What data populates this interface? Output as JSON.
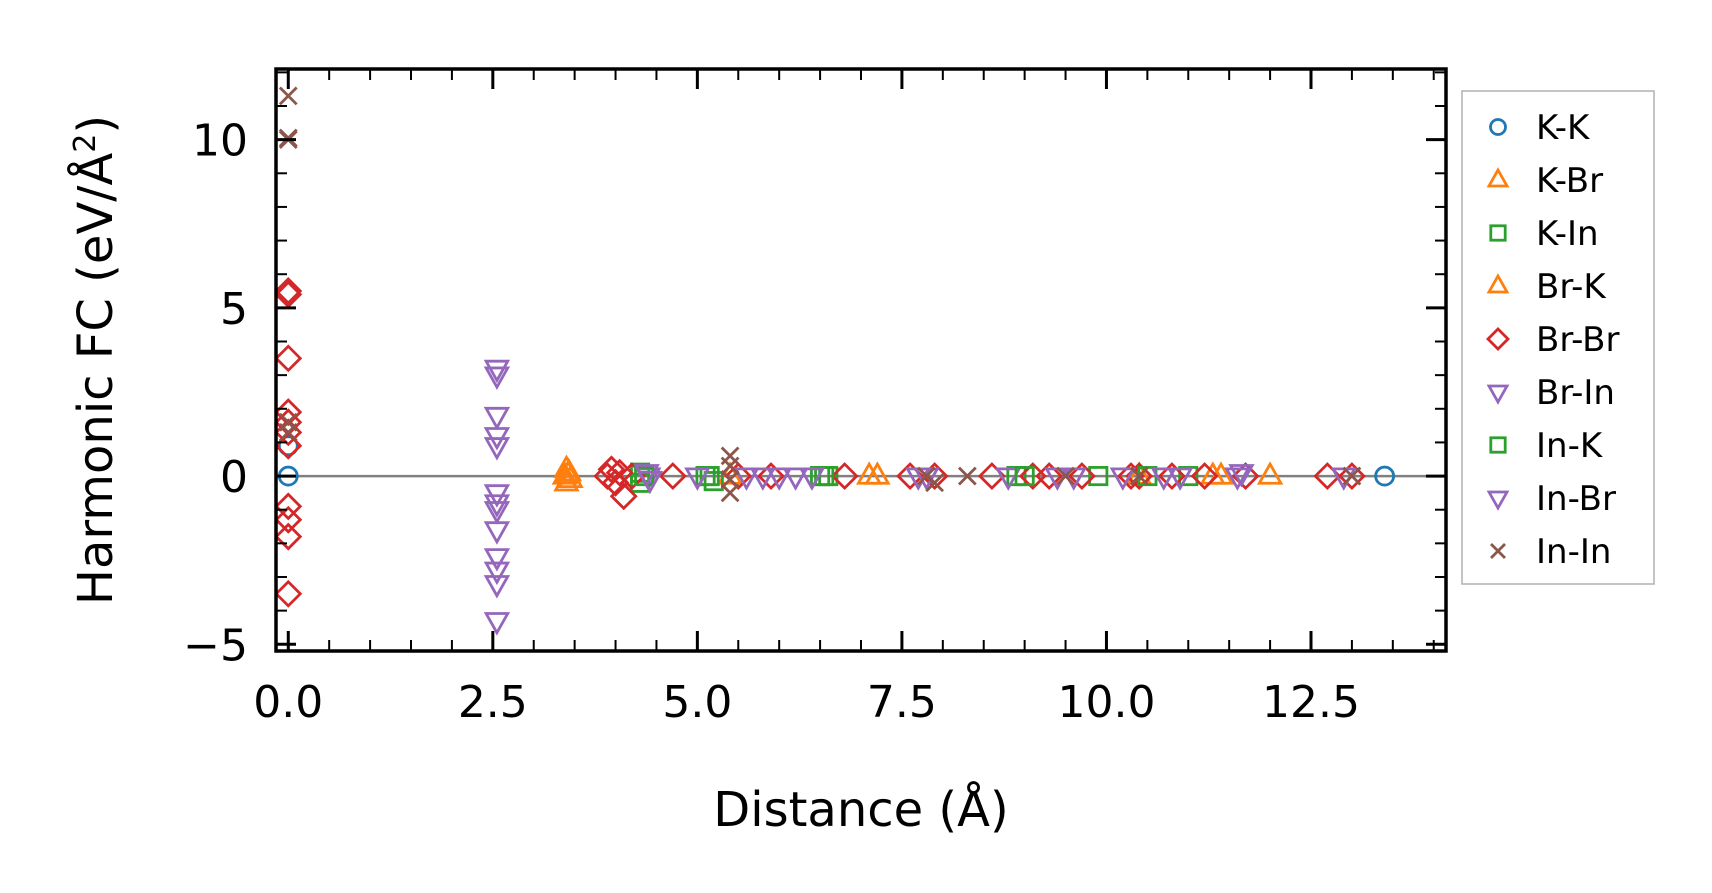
{
  "chart_data": {
    "type": "scatter",
    "xlabel": "Distance (Å)",
    "ylabel": "Harmonic FC (eV/Å²)",
    "ylabel_main": "Harmonic FC (eV/Å",
    "ylabel_sup": "2",
    "ylabel_end": ")",
    "xlim": [
      -0.15,
      14.15
    ],
    "ylim": [
      -5.2,
      12.1
    ],
    "xticks": [
      0.0,
      2.5,
      5.0,
      7.5,
      10.0,
      12.5
    ],
    "xtick_labels": [
      "0.0",
      "2.5",
      "5.0",
      "7.5",
      "10.0",
      "12.5"
    ],
    "yticks": [
      -5,
      0,
      5,
      10
    ],
    "ytick_labels": [
      "−5",
      "0",
      "5",
      "10"
    ],
    "zero_line": true,
    "grid": false,
    "legend_position": "outside right",
    "series": [
      {
        "name": "K-K",
        "marker": "circle",
        "color": "#1f77b4",
        "points": [
          [
            0,
            0
          ],
          [
            0,
            0.9
          ],
          [
            13.4,
            0
          ]
        ]
      },
      {
        "name": "K-Br",
        "marker": "triangle-up",
        "color": "#ff7f0e",
        "points": [
          [
            3.4,
            0.2
          ],
          [
            3.4,
            -0.2
          ],
          [
            3.42,
            0.05
          ],
          [
            3.45,
            -0.1
          ],
          [
            5.4,
            0
          ],
          [
            7.2,
            0
          ],
          [
            10.4,
            0
          ],
          [
            11.3,
            0
          ],
          [
            12.0,
            0
          ]
        ]
      },
      {
        "name": "K-In",
        "marker": "square",
        "color": "#2ca02c",
        "points": [
          [
            4.3,
            0.1
          ],
          [
            4.3,
            -0.2
          ],
          [
            5.1,
            0
          ],
          [
            5.2,
            -0.15
          ],
          [
            6.5,
            0
          ],
          [
            6.6,
            0
          ],
          [
            8.9,
            0
          ],
          [
            9.9,
            0
          ],
          [
            11.0,
            0
          ]
        ]
      },
      {
        "name": "Br-K",
        "marker": "triangle-up",
        "color": "#ff7f0e",
        "points": [
          [
            3.38,
            0
          ],
          [
            3.43,
            0.1
          ],
          [
            7.1,
            0
          ],
          [
            11.4,
            0
          ]
        ]
      },
      {
        "name": "Br-Br",
        "marker": "diamond",
        "color": "#d62728",
        "points": [
          [
            0,
            5.5
          ],
          [
            0,
            5.4
          ],
          [
            0,
            3.5
          ],
          [
            0,
            1.9
          ],
          [
            0,
            1.6
          ],
          [
            0,
            1.3
          ],
          [
            0,
            0.9
          ],
          [
            0,
            -0.9
          ],
          [
            0,
            -1.3
          ],
          [
            0,
            -1.8
          ],
          [
            0,
            -3.5
          ],
          [
            3.9,
            0
          ],
          [
            3.95,
            0.2
          ],
          [
            4.0,
            -0.2
          ],
          [
            4.05,
            0.1
          ],
          [
            4.1,
            -0.6
          ],
          [
            4.2,
            0
          ],
          [
            4.7,
            0
          ],
          [
            5.5,
            0
          ],
          [
            5.9,
            0
          ],
          [
            6.8,
            0
          ],
          [
            7.6,
            0
          ],
          [
            7.9,
            0
          ],
          [
            8.6,
            0
          ],
          [
            9.1,
            0
          ],
          [
            9.3,
            0
          ],
          [
            9.7,
            0
          ],
          [
            10.3,
            0
          ],
          [
            10.4,
            0
          ],
          [
            10.8,
            0
          ],
          [
            11.2,
            0
          ],
          [
            11.7,
            0
          ],
          [
            12.7,
            0
          ],
          [
            13.0,
            0
          ]
        ]
      },
      {
        "name": "Br-In",
        "marker": "triangle-down",
        "color": "#9467bd",
        "points": [
          [
            2.55,
            3.2
          ],
          [
            2.55,
            3.0
          ],
          [
            2.55,
            1.8
          ],
          [
            2.55,
            1.2
          ],
          [
            2.55,
            0.9
          ],
          [
            2.55,
            -0.5
          ],
          [
            2.55,
            -0.8
          ],
          [
            2.55,
            -1.0
          ],
          [
            2.55,
            -1.6
          ],
          [
            2.55,
            -2.4
          ],
          [
            2.55,
            -2.8
          ],
          [
            2.55,
            -3.2
          ],
          [
            2.55,
            -4.3
          ],
          [
            4.4,
            0
          ],
          [
            5.6,
            0
          ],
          [
            6.2,
            0
          ],
          [
            7.7,
            0
          ],
          [
            8.8,
            0
          ],
          [
            9.4,
            0
          ],
          [
            10.2,
            0
          ],
          [
            10.9,
            0
          ]
        ]
      },
      {
        "name": "In-K",
        "marker": "square",
        "color": "#2ca02c",
        "points": [
          [
            4.35,
            0
          ],
          [
            5.15,
            0
          ],
          [
            6.55,
            0
          ],
          [
            9.0,
            0
          ],
          [
            10.5,
            0
          ]
        ]
      },
      {
        "name": "In-Br",
        "marker": "triangle-down",
        "color": "#9467bd",
        "points": [
          [
            4.38,
            0.1
          ],
          [
            4.42,
            -0.1
          ],
          [
            5.0,
            0
          ],
          [
            5.8,
            0
          ],
          [
            6.0,
            0
          ],
          [
            6.4,
            0
          ],
          [
            7.8,
            0
          ],
          [
            9.6,
            0
          ],
          [
            10.7,
            0
          ],
          [
            11.6,
            0
          ],
          [
            11.65,
            0.1
          ],
          [
            12.9,
            0
          ]
        ]
      },
      {
        "name": "In-In",
        "marker": "x",
        "color": "#8c564b",
        "points": [
          [
            0,
            11.3
          ],
          [
            0,
            10.05
          ],
          [
            0,
            10.0
          ],
          [
            0,
            1.6
          ],
          [
            0,
            1.3
          ],
          [
            5.4,
            0.6
          ],
          [
            5.4,
            0.3
          ],
          [
            5.4,
            -0.1
          ],
          [
            5.4,
            -0.5
          ],
          [
            7.8,
            0
          ],
          [
            7.9,
            -0.2
          ],
          [
            8.3,
            0
          ],
          [
            9.5,
            0
          ],
          [
            10.4,
            0
          ],
          [
            13.0,
            0
          ]
        ]
      }
    ]
  }
}
